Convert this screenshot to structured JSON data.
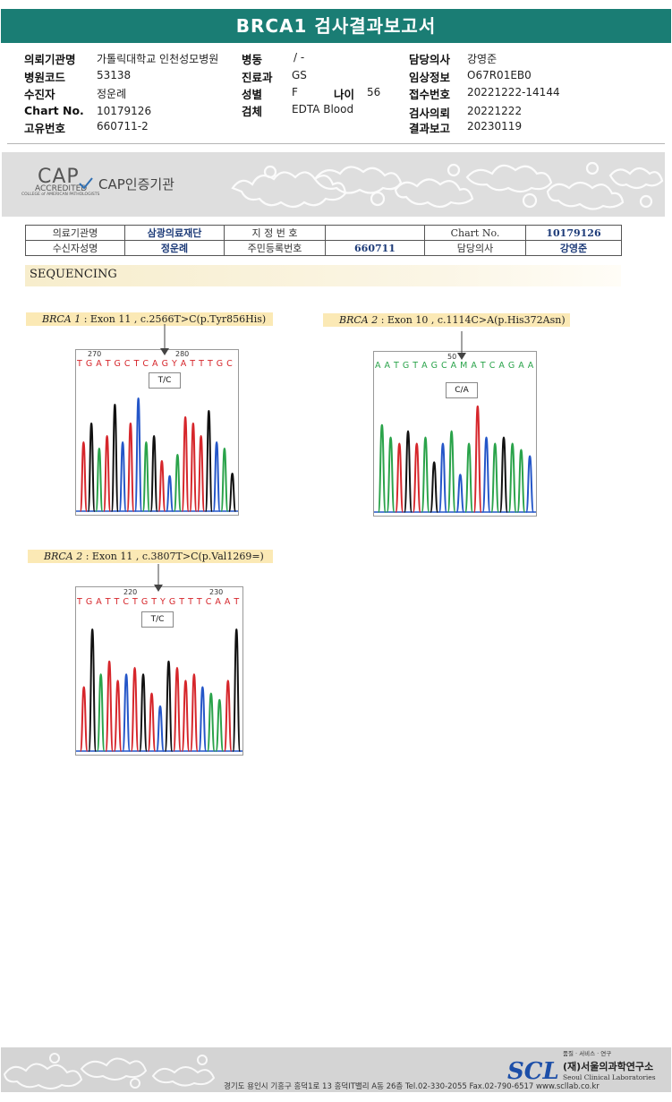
{
  "title": "BRCA1 검사결과보고서",
  "header": {
    "col1": [
      {
        "label": "의뢰기관명",
        "value": "가톨릭대학교 인천성모병원"
      },
      {
        "label": "병원코드",
        "value": "53138"
      },
      {
        "label": "수진자",
        "value": "정운례"
      },
      {
        "label": "Chart No.",
        "value": "10179126"
      },
      {
        "label": "고유번호",
        "value": "660711-2"
      }
    ],
    "col2": [
      {
        "label": "병동",
        "value": "/ -"
      },
      {
        "label": "진료과",
        "value": "GS"
      },
      {
        "label": "성별",
        "value": "F"
      },
      {
        "label": "검체",
        "value": "EDTA Blood"
      }
    ],
    "age": {
      "label": "나이",
      "value": "56"
    },
    "col3": [
      {
        "label": "담당의사",
        "value": "강영준"
      },
      {
        "label": "임상정보",
        "value": "O67R01EB0"
      },
      {
        "label": "접수번호",
        "value": "20221222-14144"
      },
      {
        "label": "검사의뢰",
        "value": "20221222"
      },
      {
        "label": "결과보고",
        "value": "20230119"
      }
    ]
  },
  "cap": {
    "logo_big": "CAP",
    "logo_sub": "ACCREDITED",
    "logo_small": "COLLEGE of AMERICAN PATHOLOGISTS",
    "label": "CAP인증기관"
  },
  "info_table": {
    "r1": [
      "의료기관명",
      "삼광의료재단",
      "지 정 번 호",
      "",
      "Chart No.",
      "10179126"
    ],
    "r2": [
      "수신자성명",
      "정운례",
      "주민등록번호",
      "660711",
      "담당의사",
      "강영준"
    ]
  },
  "section_title": "SEQUENCING",
  "variants": [
    {
      "gene": "BRCA 1",
      "detail": " : Exon 11 , c.2566T>C(p.Tyr856His)",
      "pos1": "270",
      "pos2": "280",
      "seq": "T G A T G C T C A G Y A T T T G C A G",
      "call": "T/C"
    },
    {
      "gene": "BRCA 2",
      "detail": " : Exon 10 , c.1114C>A(p.His372Asn)",
      "pos1": "50",
      "seq": "A A T G T A G C A M A T C A G A A C",
      "call": "C/A"
    },
    {
      "gene": "BRCA 2",
      "detail": " : Exon 11 , c.3807T>C(p.Val1269=)",
      "pos1": "220",
      "pos2": "230",
      "seq": "T G A T T C T G T Y G T T T C A A T G",
      "call": "T/C"
    }
  ],
  "footer": {
    "tagline": "품질 · 서비스 · 연구",
    "logo": "SCL",
    "org_kr": "(재)서울의과학연구소",
    "org_en": "Seoul Clinical Laboratories",
    "address": "경기도 용인시 기흥구 흥덕1로 13 흥덕IT밸리 A동 26층  Tel.02-330-2055  Fax.02-790-6517  www.scllab.co.kr"
  },
  "colors": {
    "teal": "#1a7d74",
    "navy": "#1d3b78",
    "A": "#2aa34a",
    "C": "#2456c8",
    "G": "#111111",
    "T": "#d6262b"
  }
}
